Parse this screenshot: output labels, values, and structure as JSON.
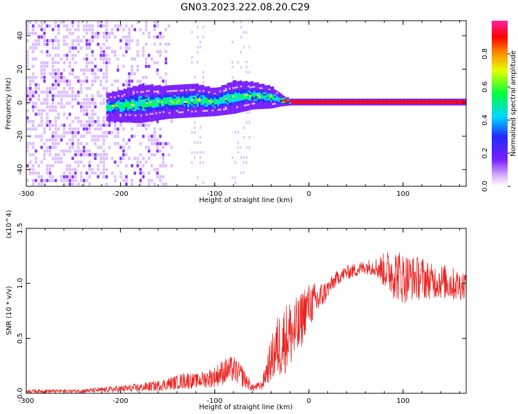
{
  "title": "GN03.2023.222.08.20.C29",
  "colors": {
    "snr_line": "#e8221f",
    "spectrum_ridge": "#e8221f",
    "frame": "#000000"
  },
  "chart_data": [
    {
      "type": "heatmap",
      "xlabel": "Height of straight line (km)",
      "ylabel": "Frequency (Hz)",
      "xlim": [
        -300,
        167
      ],
      "ylim": [
        -50,
        49
      ],
      "xticks": [
        -300,
        -200,
        -100,
        0,
        100
      ],
      "xtick_labels": [
        "-300",
        "-200",
        "-100",
        "0",
        "100"
      ],
      "yticks": [
        -40,
        -20,
        0,
        20,
        40
      ],
      "ytick_labels": [
        "-40",
        "-20",
        "0",
        "20",
        "40"
      ],
      "colorbar": {
        "label": "Normalized spectral amplitude",
        "range": [
          0,
          1
        ],
        "ticks": [
          0.0,
          0.2,
          0.4,
          0.6,
          0.8
        ],
        "tick_labels": [
          "0.0",
          "0.2",
          "0.4",
          "0.6",
          "0.8"
        ],
        "colormap": "rainbow (white-purple-blue-cyan-green-yellow-red-magenta)"
      },
      "ridge": {
        "description_points_x": [
          -215,
          -180,
          -150,
          -120,
          -100,
          -80,
          -60,
          -40,
          -30,
          -20,
          0,
          50,
          100,
          167
        ],
        "center_freq": [
          -3,
          -1,
          0,
          1,
          0,
          3,
          4,
          3,
          1,
          0,
          0,
          0,
          0,
          0
        ],
        "halfwidth": [
          5,
          7,
          6,
          6,
          5,
          6,
          5,
          4,
          2,
          1,
          1,
          1,
          1,
          1
        ]
      },
      "grid": false
    },
    {
      "type": "line",
      "xlabel": "Height of straight line (km)",
      "ylabel": "SNR (10 * v/v)",
      "y_multiplier": "(x10^4)",
      "xlim": [
        -300,
        167
      ],
      "ylim": [
        0,
        1.5
      ],
      "xticks": [
        -300,
        -200,
        -100,
        0,
        100
      ],
      "xtick_labels": [
        "-300",
        "-200",
        "-100",
        "0",
        "100"
      ],
      "yticks": [
        0.0,
        0.5,
        1.0,
        1.5
      ],
      "ytick_labels": [
        "0.0",
        "0.5",
        "1.0",
        "1.5"
      ],
      "series": [
        {
          "x": [
            -300,
            -250,
            -220,
            -200,
            -180,
            -160,
            -140,
            -130,
            -120,
            -110,
            -100,
            -90,
            -80,
            -70,
            -60,
            -50,
            -45,
            -40,
            -35,
            -30,
            -25,
            -20,
            -15,
            -10,
            -5,
            0,
            10,
            20,
            30,
            40,
            50,
            60,
            70,
            80,
            90,
            100,
            110,
            120,
            130,
            140,
            150,
            160,
            167
          ],
          "mean": [
            0.02,
            0.02,
            0.03,
            0.04,
            0.05,
            0.07,
            0.1,
            0.12,
            0.11,
            0.13,
            0.15,
            0.2,
            0.22,
            0.15,
            0.05,
            0.07,
            0.2,
            0.3,
            0.4,
            0.45,
            0.5,
            0.55,
            0.55,
            0.6,
            0.75,
            0.8,
            0.85,
            0.95,
            1.05,
            1.1,
            1.12,
            1.15,
            1.15,
            1.12,
            1.1,
            1.05,
            1.05,
            1.05,
            1.02,
            1.02,
            1.0,
            0.98,
            1.0
          ],
          "amp": [
            0.02,
            0.02,
            0.03,
            0.04,
            0.05,
            0.06,
            0.08,
            0.1,
            0.08,
            0.1,
            0.12,
            0.15,
            0.15,
            0.12,
            0.04,
            0.05,
            0.15,
            0.25,
            0.35,
            0.4,
            0.4,
            0.4,
            0.4,
            0.35,
            0.3,
            0.25,
            0.2,
            0.1,
            0.08,
            0.08,
            0.08,
            0.08,
            0.1,
            0.2,
            0.3,
            0.3,
            0.25,
            0.25,
            0.2,
            0.2,
            0.2,
            0.18,
            0.15
          ]
        }
      ],
      "grid": false
    }
  ]
}
